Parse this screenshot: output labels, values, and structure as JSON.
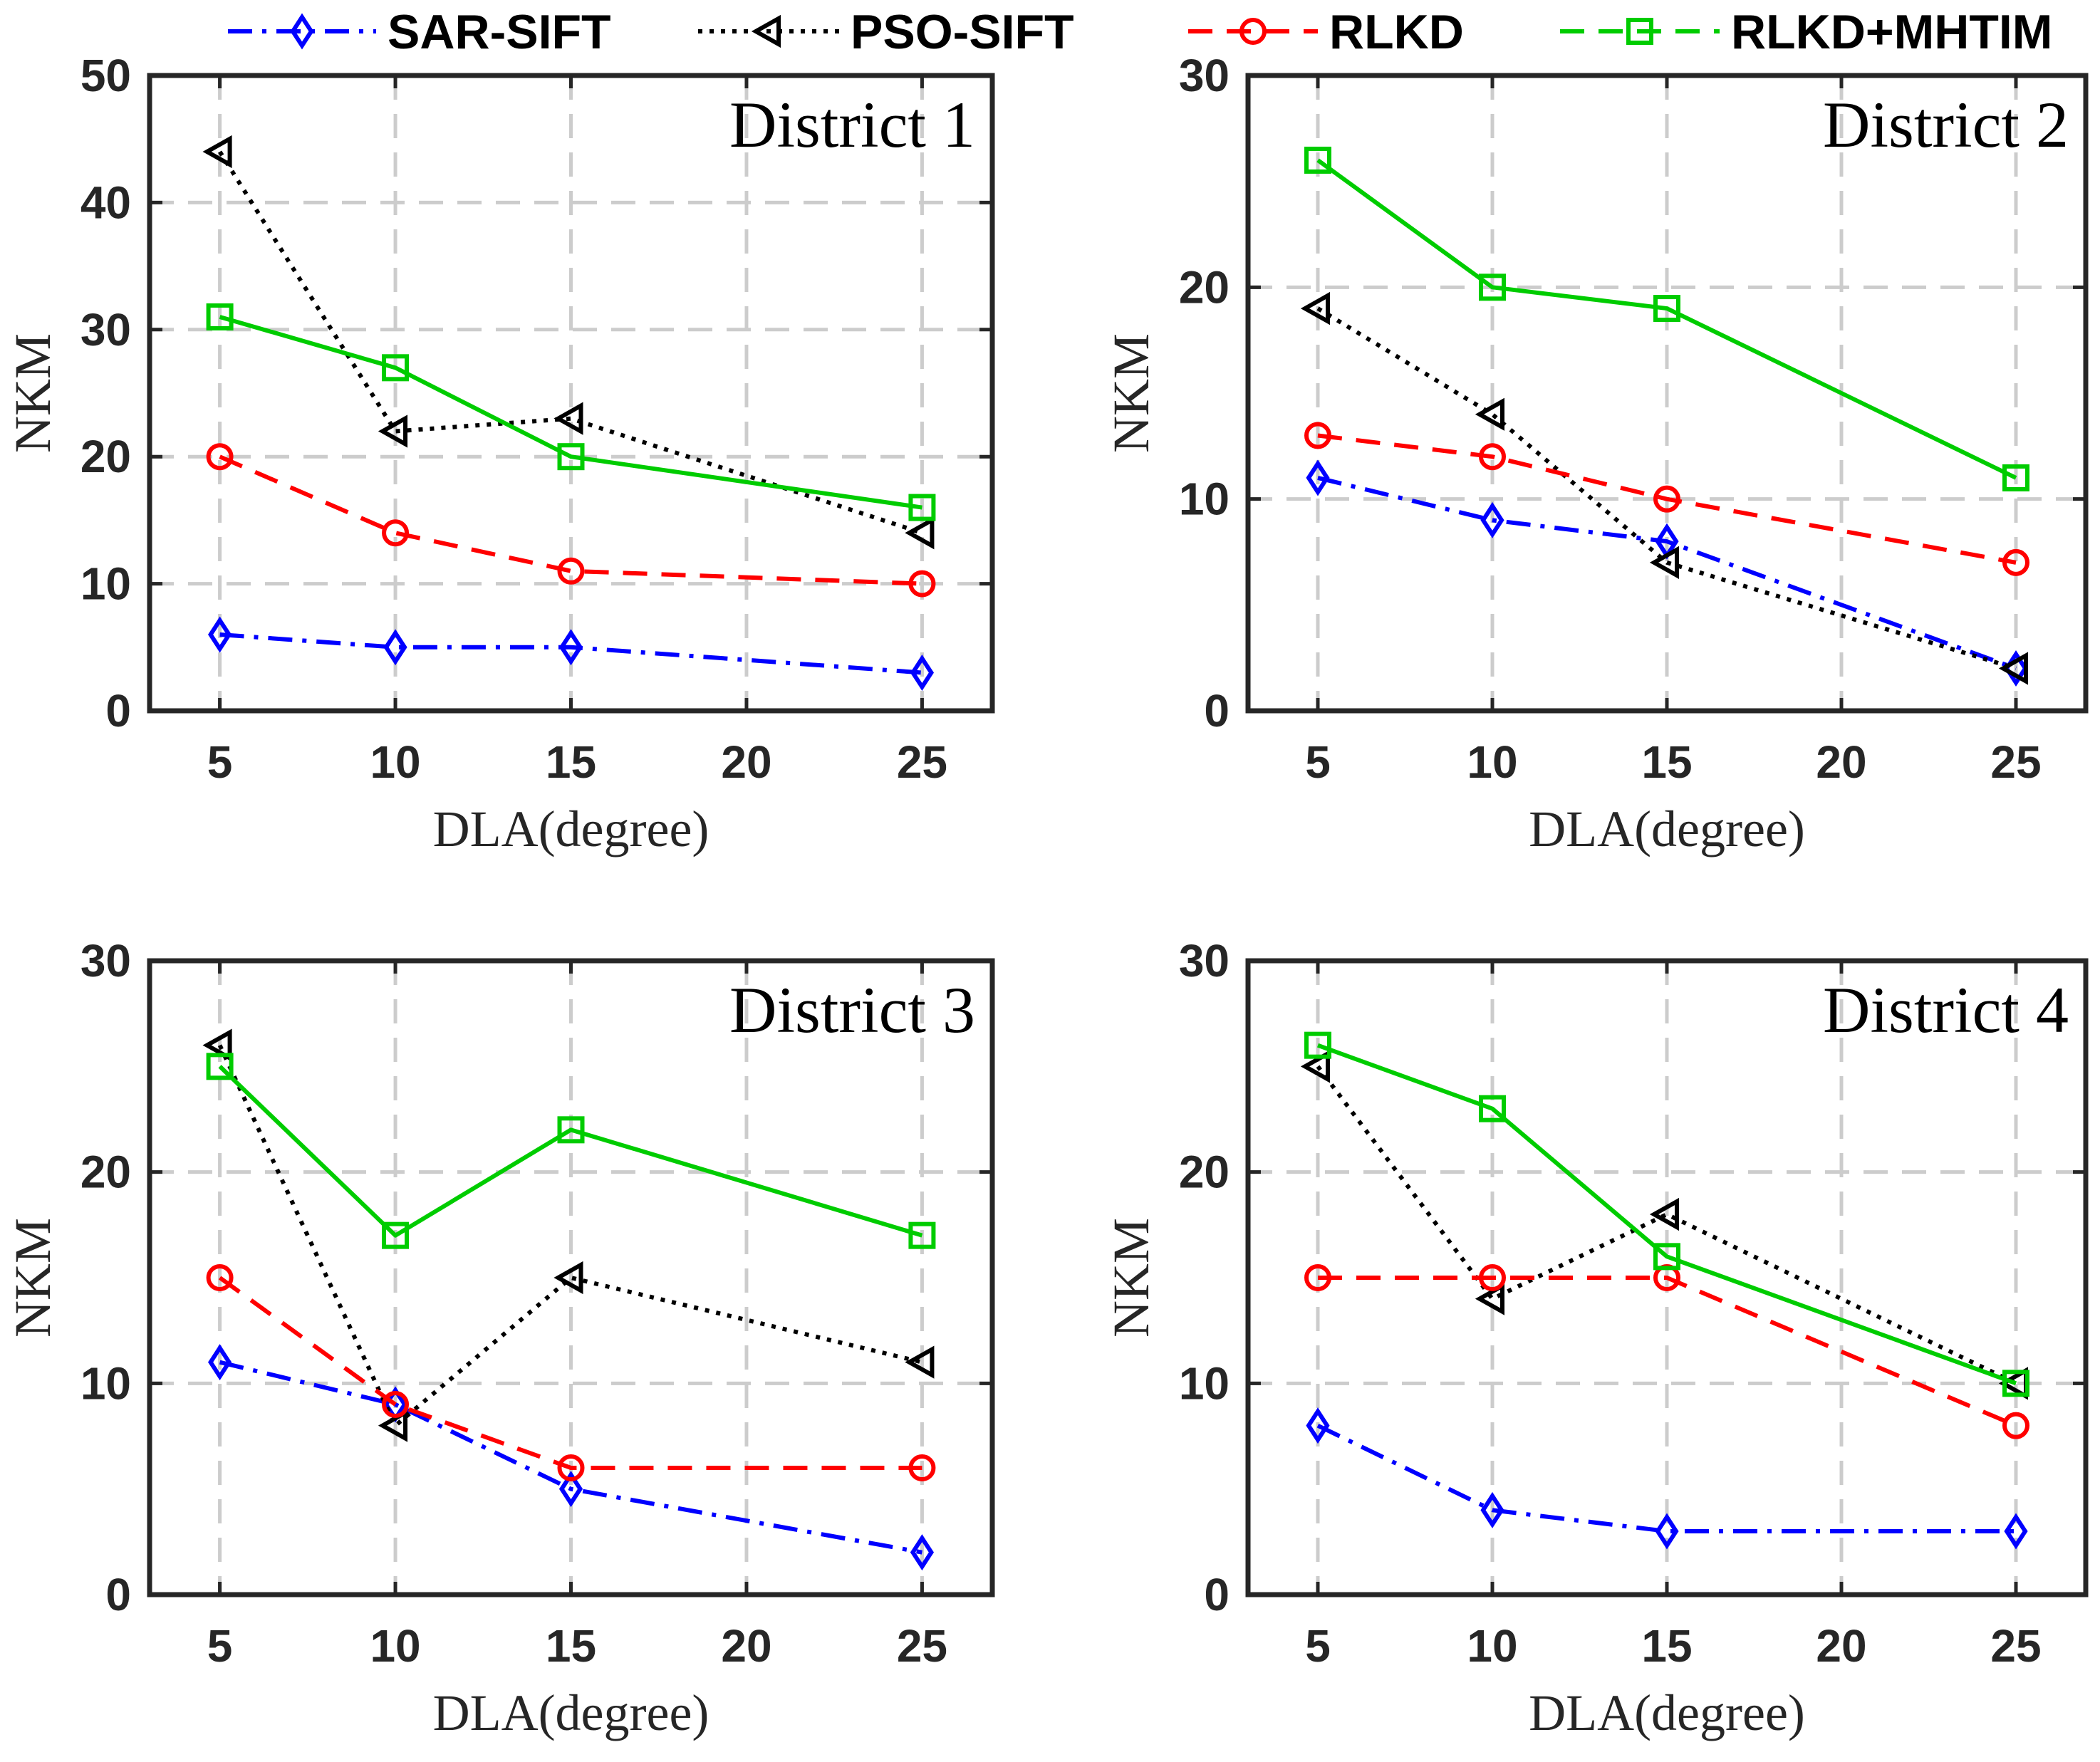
{
  "legend": [
    {
      "name": "SAR-SIFT",
      "color": "#0000ff",
      "dash": "dashdot",
      "marker": "diamond"
    },
    {
      "name": "PSO-SIFT",
      "color": "#000000",
      "dash": "dotted",
      "marker": "triangle-left"
    },
    {
      "name": "RLKD",
      "color": "#ff0000",
      "dash": "dashed",
      "marker": "circle"
    },
    {
      "name": "RLKD+MHTIM",
      "color": "#00cc00",
      "dash": "solid",
      "marker": "square",
      "legend_dash": "dashed"
    }
  ],
  "chart_data": [
    {
      "type": "line",
      "title": "District 1",
      "xlabel": "DLA(degree)",
      "ylabel": "NKM",
      "x": [
        5,
        10,
        15,
        25
      ],
      "xlim": [
        3,
        27
      ],
      "ylim": [
        0,
        50
      ],
      "xticks": [
        5,
        10,
        15,
        20,
        25
      ],
      "yticks": [
        0,
        10,
        20,
        30,
        40,
        50
      ],
      "grid": true,
      "series": [
        {
          "name": "SAR-SIFT",
          "values": [
            6,
            5,
            5,
            3
          ]
        },
        {
          "name": "PSO-SIFT",
          "values": [
            44,
            22,
            23,
            14
          ]
        },
        {
          "name": "RLKD",
          "values": [
            20,
            14,
            11,
            10
          ]
        },
        {
          "name": "RLKD+MHTIM",
          "values": [
            31,
            27,
            20,
            16
          ]
        }
      ]
    },
    {
      "type": "line",
      "title": "District 2",
      "xlabel": "DLA(degree)",
      "ylabel": "NKM",
      "x": [
        5,
        10,
        15,
        25
      ],
      "xlim": [
        3,
        27
      ],
      "ylim": [
        0,
        30
      ],
      "xticks": [
        5,
        10,
        15,
        20,
        25
      ],
      "yticks": [
        0,
        10,
        20,
        30
      ],
      "grid": true,
      "series": [
        {
          "name": "SAR-SIFT",
          "values": [
            11,
            9,
            8,
            2
          ]
        },
        {
          "name": "PSO-SIFT",
          "values": [
            19,
            14,
            7,
            2
          ]
        },
        {
          "name": "RLKD",
          "values": [
            13,
            12,
            10,
            7
          ]
        },
        {
          "name": "RLKD+MHTIM",
          "values": [
            26,
            20,
            19,
            11
          ]
        }
      ]
    },
    {
      "type": "line",
      "title": "District 3",
      "xlabel": "DLA(degree)",
      "ylabel": "NKM",
      "x": [
        5,
        10,
        15,
        25
      ],
      "xlim": [
        3,
        27
      ],
      "ylim": [
        0,
        30
      ],
      "xticks": [
        5,
        10,
        15,
        20,
        25
      ],
      "yticks": [
        0,
        10,
        20,
        30
      ],
      "grid": true,
      "series": [
        {
          "name": "SAR-SIFT",
          "values": [
            11,
            9,
            5,
            2
          ]
        },
        {
          "name": "PSO-SIFT",
          "values": [
            26,
            8,
            15,
            11
          ]
        },
        {
          "name": "RLKD",
          "values": [
            15,
            9,
            6,
            6
          ]
        },
        {
          "name": "RLKD+MHTIM",
          "values": [
            25,
            17,
            22,
            17
          ]
        }
      ]
    },
    {
      "type": "line",
      "title": "District 4",
      "xlabel": "DLA(degree)",
      "ylabel": "NKM",
      "x": [
        5,
        10,
        15,
        25
      ],
      "xlim": [
        3,
        27
      ],
      "ylim": [
        0,
        30
      ],
      "xticks": [
        5,
        10,
        15,
        20,
        25
      ],
      "yticks": [
        0,
        10,
        20,
        30
      ],
      "grid": true,
      "series": [
        {
          "name": "SAR-SIFT",
          "values": [
            8,
            4,
            3,
            3
          ]
        },
        {
          "name": "PSO-SIFT",
          "values": [
            25,
            14,
            18,
            10
          ]
        },
        {
          "name": "RLKD",
          "values": [
            15,
            15,
            15,
            8
          ]
        },
        {
          "name": "RLKD+MHTIM",
          "values": [
            26,
            23,
            16,
            10
          ]
        }
      ]
    }
  ]
}
